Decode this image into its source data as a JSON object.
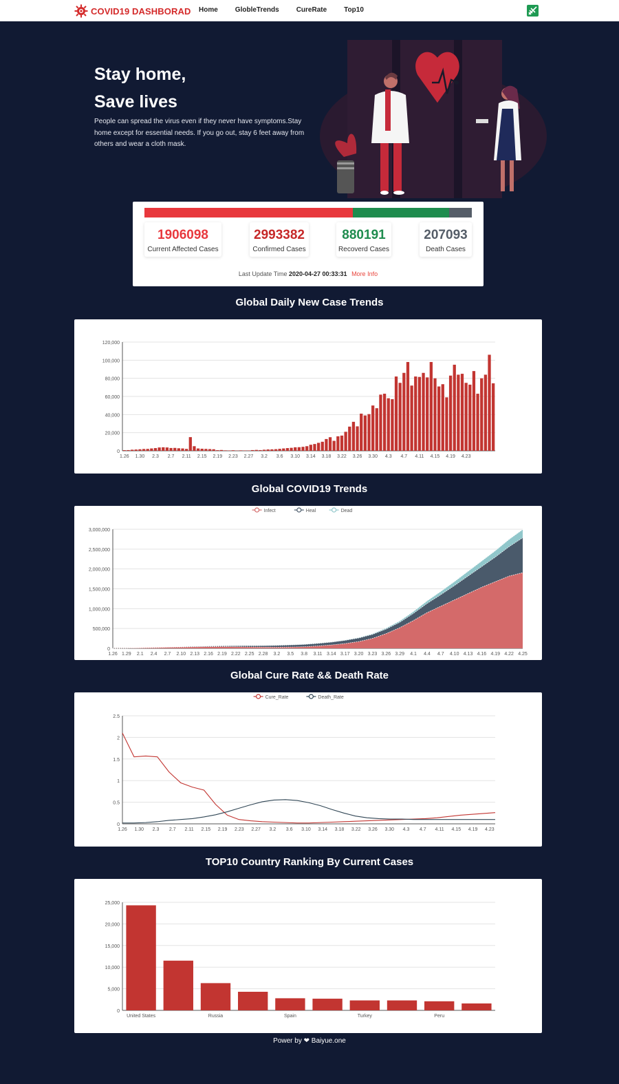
{
  "nav": {
    "brand": "COVID19 DASHBORAD",
    "links": [
      "Home",
      "GlobleTrends",
      "CureRate",
      "Top10"
    ]
  },
  "hero": {
    "title_line1": "Stay home,",
    "title_line2": "Save lives",
    "description": "People can spread the virus even if they never have symptoms.Stay home except for essential needs. If you go out, stay 6 feet away from others and wear a cloth mask."
  },
  "stats": {
    "current": {
      "value": "1906098",
      "label": "Current Affected Cases"
    },
    "confirmed": {
      "value": "2993382",
      "label": "Confirmed Cases"
    },
    "recovered": {
      "value": "880191",
      "label": "Recoverd Cases"
    },
    "death": {
      "value": "207093",
      "label": "Death Cases"
    },
    "update_label": "Last Update Time",
    "update_time": "2020-04-27 00:33:31",
    "more_info": "More Info",
    "colors": {
      "current": "#e8383d",
      "confirmed": "#c62828",
      "recovered": "#1e8c4e",
      "death": "#555d68"
    }
  },
  "sections": {
    "daily": "Global Daily New Case Trends",
    "trends": "Global COVID19 Trends",
    "rates": "Global Cure Rate && Death Rate",
    "top10": "TOP10 Country Ranking By Current Cases"
  },
  "footer": {
    "prefix": "Power by",
    "suffix": "Baiyue.one"
  },
  "chart_data": [
    {
      "type": "bar",
      "title": "Global Daily New Case Trends",
      "x_start": "1.26",
      "x_ticks": [
        "1.26",
        "1.30",
        "2.3",
        "2.7",
        "2.11",
        "2.15",
        "2.19",
        "2.23",
        "2.27",
        "3.2",
        "3.6",
        "3.10",
        "3.14",
        "3.18",
        "3.22",
        "3.26",
        "3.30",
        "4.3",
        "4.7",
        "4.11",
        "4.15",
        "4.19",
        "4.23"
      ],
      "values": [
        700,
        800,
        1200,
        1400,
        1700,
        2000,
        2100,
        2600,
        3000,
        3700,
        3900,
        3700,
        3100,
        3200,
        2800,
        2600,
        2100,
        15100,
        5100,
        2600,
        2300,
        2100,
        1900,
        1700,
        700,
        900,
        500,
        400,
        600,
        300,
        500,
        400,
        400,
        800,
        1000,
        800,
        1200,
        1500,
        1600,
        1800,
        2200,
        2600,
        3000,
        3300,
        3900,
        4000,
        4400,
        5100,
        6700,
        7500,
        8800,
        10000,
        13000,
        15000,
        11000,
        16000,
        16800,
        21000,
        26700,
        32000,
        27000,
        41000,
        39000,
        40500,
        50000,
        47000,
        62000,
        63000,
        58000,
        57000,
        82000,
        75000,
        86000,
        98000,
        72000,
        82000,
        81500,
        86000,
        81000,
        98000,
        80000,
        71000,
        73500,
        59000,
        83000,
        95000,
        84000,
        85000,
        75000,
        73000,
        88000,
        63000,
        80000,
        84000,
        106000,
        74500
      ],
      "y_ticks": [
        0,
        20000,
        40000,
        60000,
        80000,
        100000,
        120000
      ],
      "ylim": [
        0,
        120000
      ],
      "color": "#c23531"
    },
    {
      "type": "area",
      "title": "Global COVID19 Trends",
      "x_ticks": [
        "1.26",
        "1.29",
        "2.1",
        "2.4",
        "2.7",
        "2.10",
        "2.13",
        "2.16",
        "2.19",
        "2.22",
        "2.25",
        "2.28",
        "3.2",
        "3.5",
        "3.8",
        "3.11",
        "3.14",
        "3.17",
        "3.20",
        "3.23",
        "3.26",
        "3.29",
        "4.1",
        "4.4",
        "4.7",
        "4.10",
        "4.13",
        "4.16",
        "4.19",
        "4.22",
        "4.25"
      ],
      "series": [
        {
          "name": "Infect",
          "color": "#d46a6a",
          "values": [
            2000,
            5000,
            12000,
            18000,
            25000,
            30000,
            37000,
            42000,
            43000,
            40000,
            35000,
            30000,
            28000,
            32000,
            40000,
            60000,
            85000,
            120000,
            170000,
            250000,
            370000,
            520000,
            700000,
            900000,
            1060000,
            1220000,
            1380000,
            1540000,
            1680000,
            1820000,
            1906098
          ]
        },
        {
          "name": "Heal",
          "color": "#4a5a6b",
          "values": [
            0,
            100,
            500,
            1500,
            3000,
            5000,
            8000,
            12000,
            17000,
            24000,
            30000,
            37000,
            45000,
            52000,
            58000,
            63000,
            70000,
            80000,
            90000,
            100000,
            115000,
            135000,
            180000,
            230000,
            290000,
            360000,
            440000,
            520000,
            620000,
            740000,
            880191
          ]
        },
        {
          "name": "Dead",
          "color": "#91c7cb",
          "values": [
            0,
            100,
            250,
            450,
            650,
            900,
            1200,
            1500,
            2000,
            2400,
            2700,
            2900,
            3100,
            3400,
            3600,
            4300,
            5800,
            7900,
            11000,
            16000,
            24000,
            34000,
            47000,
            64000,
            82000,
            100000,
            120000,
            140000,
            161000,
            184000,
            207093
          ]
        }
      ],
      "y_ticks": [
        0,
        500000,
        1000000,
        1500000,
        2000000,
        2500000,
        3000000
      ],
      "ylim": [
        0,
        3000000
      ]
    },
    {
      "type": "line",
      "title": "Global Cure Rate && Death Rate",
      "x_ticks": [
        "1.26",
        "1.30",
        "2.3",
        "2.7",
        "2.11",
        "2.15",
        "2.19",
        "2.23",
        "2.27",
        "3.2",
        "3.6",
        "3.10",
        "3.14",
        "3.18",
        "3.22",
        "3.26",
        "3.30",
        "4.3",
        "4.7",
        "4.11",
        "4.15",
        "4.19",
        "4.23"
      ],
      "series": [
        {
          "name": "Cure_Rate",
          "color": "#c23531",
          "values": [
            2.1,
            1.55,
            1.57,
            1.55,
            1.2,
            0.95,
            0.85,
            0.78,
            0.45,
            0.2,
            0.1,
            0.07,
            0.05,
            0.04,
            0.03,
            0.02,
            0.02,
            0.03,
            0.04,
            0.05,
            0.06,
            0.07,
            0.08,
            0.09,
            0.1,
            0.11,
            0.12,
            0.14,
            0.17,
            0.2,
            0.22,
            0.24,
            0.26
          ]
        },
        {
          "name": "Death_Rate",
          "color": "#2f4554",
          "values": [
            0.02,
            0.02,
            0.03,
            0.05,
            0.08,
            0.1,
            0.12,
            0.16,
            0.21,
            0.28,
            0.36,
            0.44,
            0.51,
            0.55,
            0.56,
            0.54,
            0.49,
            0.42,
            0.33,
            0.25,
            0.18,
            0.14,
            0.12,
            0.11,
            0.11,
            0.1,
            0.1,
            0.1,
            0.1,
            0.1,
            0.1,
            0.1,
            0.1
          ]
        }
      ],
      "y_ticks": [
        0,
        0.5,
        1,
        1.5,
        2,
        2.5
      ],
      "ylim": [
        0,
        2.5
      ]
    },
    {
      "type": "bar",
      "title": "TOP10 Country Ranking By Current Cases",
      "x_tick_labels": [
        "United States",
        "Russia",
        "Spain",
        "Turkey",
        "Peru"
      ],
      "values": [
        24300,
        11500,
        6300,
        4300,
        2800,
        2700,
        2300,
        2300,
        2100,
        1600
      ],
      "y_ticks": [
        0,
        5000,
        10000,
        15000,
        20000,
        25000
      ],
      "ylim": [
        0,
        25000
      ],
      "color": "#c23531"
    }
  ]
}
